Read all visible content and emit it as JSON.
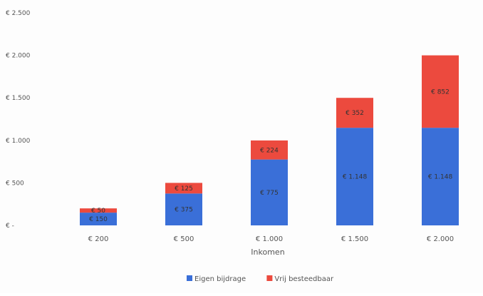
{
  "chart_data": {
    "type": "bar",
    "stacked": true,
    "title": "",
    "xlabel": "Inkomen",
    "ylabel": "",
    "categories": [
      "€ 200",
      "€ 500",
      "€ 1.000",
      "€ 1.500",
      "€ 2.000"
    ],
    "ylim": [
      0,
      2500
    ],
    "yticks": [
      0,
      500,
      1000,
      1500,
      2000,
      2500
    ],
    "ytick_labels": [
      "€ -",
      "€ 500",
      "€ 1.000",
      "€ 1.500",
      "€ 2.000",
      "€ 2.500"
    ],
    "grid": false,
    "legend_position": "bottom",
    "series": [
      {
        "name": "Eigen bijdrage",
        "color": "#3a6fd8",
        "values": [
          150,
          375,
          775,
          1148,
          1148
        ],
        "labels": [
          "€ 150",
          "€ 375",
          "€ 775",
          "€ 1.148",
          "€ 1.148"
        ]
      },
      {
        "name": "Vrij besteedbaar",
        "color": "#ec4a3e",
        "values": [
          50,
          125,
          224,
          352,
          852
        ],
        "labels": [
          "€ 50",
          "€ 125",
          "€ 224",
          "€ 352",
          "€ 852"
        ]
      }
    ]
  }
}
